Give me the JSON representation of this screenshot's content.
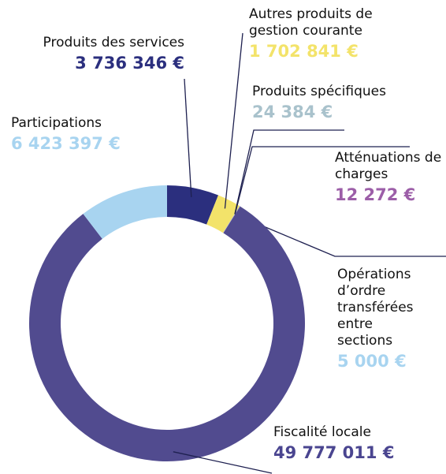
{
  "chart_data": {
    "type": "donut",
    "categories": [
      "Produits des services",
      "Autres produits de gestion courante",
      "Produits spécifiques",
      "Atténuations de charges",
      "Opérations d’ordre transférées entre sections",
      "Fiscalité locale",
      "Participations"
    ],
    "values": [
      3736346,
      1702841,
      24384,
      12272,
      5000,
      49777011,
      6423397
    ],
    "value_labels": [
      "3 736 346 €",
      "1 702 841 €",
      "24 384 €",
      "12 272 €",
      "5 000 €",
      "49 777 011 €",
      "6 423 397 €"
    ],
    "colors": [
      "#2b2f7e",
      "#f3e36a",
      "#a9c2cc",
      "#9c5ea8",
      "#a8d4f0",
      "#514b8f",
      "#a8d4f0"
    ],
    "label_colors": [
      "#2b2f7e",
      "#f3e36a",
      "#a9c2cc",
      "#9c5ea8",
      "#a8d4f0",
      "#4a4590",
      "#a8d4f0"
    ]
  }
}
